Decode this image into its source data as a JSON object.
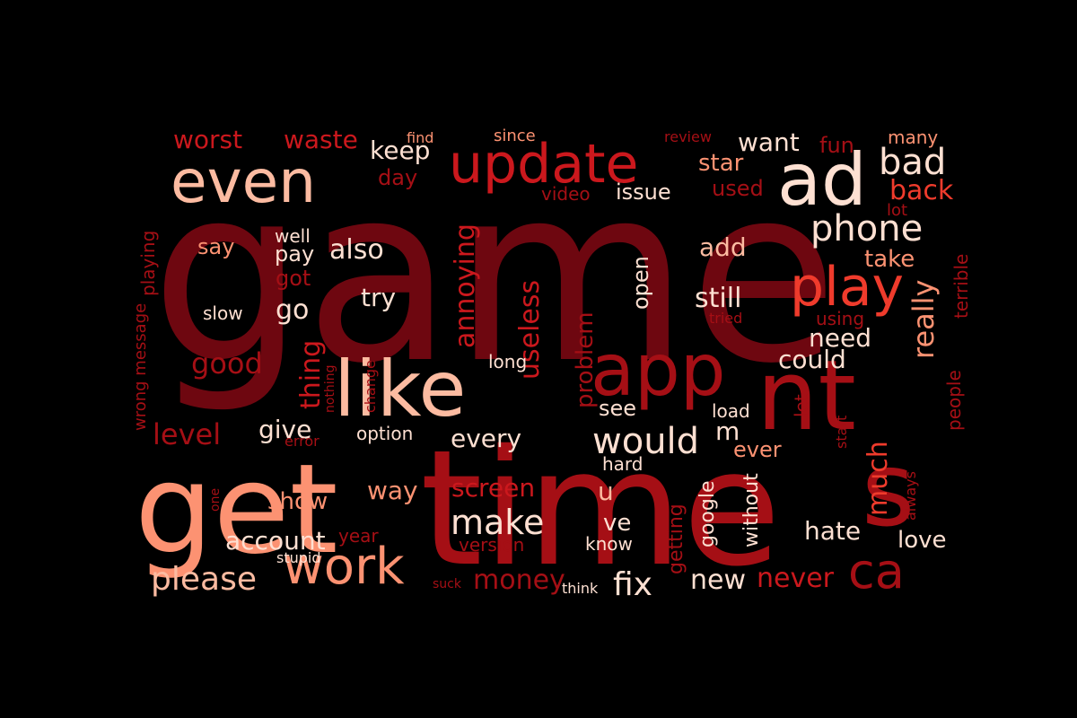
{
  "background": "#000000",
  "palette": {
    "maroon": "#6e0710",
    "dark_red": "#a50f15",
    "red": "#cb181d",
    "bright_red": "#ef3b2c",
    "salmon": "#fb6a4a",
    "light_salmon": "#fc9272",
    "peach": "#fcbba1",
    "pale": "#fee0d2"
  },
  "words": [
    {
      "text": "game",
      "color": "maroon"
    },
    {
      "text": "time",
      "color": "dark_red"
    },
    {
      "text": "get",
      "color": "light_salmon"
    },
    {
      "text": "nt",
      "color": "dark_red"
    },
    {
      "text": "like",
      "color": "peach"
    },
    {
      "text": "app",
      "color": "dark_red"
    },
    {
      "text": "ad",
      "color": "pale"
    },
    {
      "text": "even",
      "color": "peach"
    },
    {
      "text": "update",
      "color": "red"
    },
    {
      "text": "play",
      "color": "bright_red"
    },
    {
      "text": "s",
      "color": "dark_red"
    },
    {
      "text": "work",
      "color": "light_salmon"
    },
    {
      "text": "ca",
      "color": "dark_red"
    },
    {
      "text": "would",
      "color": "pale"
    },
    {
      "text": "make",
      "color": "pale"
    },
    {
      "text": "phone",
      "color": "pale"
    },
    {
      "text": "bad",
      "color": "pale"
    },
    {
      "text": "please",
      "color": "peach"
    },
    {
      "text": "worst",
      "color": "red"
    },
    {
      "text": "waste",
      "color": "red"
    },
    {
      "text": "keep",
      "color": "pale"
    },
    {
      "text": "want",
      "color": "pale"
    },
    {
      "text": "fun",
      "color": "dark_red"
    },
    {
      "text": "many",
      "color": "light_salmon"
    },
    {
      "text": "star",
      "color": "light_salmon"
    },
    {
      "text": "back",
      "color": "bright_red"
    },
    {
      "text": "used",
      "color": "dark_red"
    },
    {
      "text": "issue",
      "color": "pale"
    },
    {
      "text": "video",
      "color": "dark_red"
    },
    {
      "text": "day",
      "color": "dark_red"
    },
    {
      "text": "find",
      "color": "light_salmon"
    },
    {
      "text": "since",
      "color": "light_salmon"
    },
    {
      "text": "review",
      "color": "dark_red"
    },
    {
      "text": "well",
      "color": "pale"
    },
    {
      "text": "pay",
      "color": "pale"
    },
    {
      "text": "also",
      "color": "pale"
    },
    {
      "text": "say",
      "color": "light_salmon"
    },
    {
      "text": "got",
      "color": "dark_red"
    },
    {
      "text": "go",
      "color": "pale"
    },
    {
      "text": "try",
      "color": "pale"
    },
    {
      "text": "slow",
      "color": "pale"
    },
    {
      "text": "good",
      "color": "dark_red"
    },
    {
      "text": "thing",
      "color": "red"
    },
    {
      "text": "level",
      "color": "dark_red"
    },
    {
      "text": "give",
      "color": "pale"
    },
    {
      "text": "error",
      "color": "dark_red"
    },
    {
      "text": "option",
      "color": "pale"
    },
    {
      "text": "show",
      "color": "light_salmon"
    },
    {
      "text": "way",
      "color": "light_salmon"
    },
    {
      "text": "account",
      "color": "pale"
    },
    {
      "text": "year",
      "color": "dark_red"
    },
    {
      "text": "stupid",
      "color": "pale"
    },
    {
      "text": "suck",
      "color": "dark_red"
    },
    {
      "text": "money",
      "color": "dark_red"
    },
    {
      "text": "think",
      "color": "pale"
    },
    {
      "text": "fix",
      "color": "pale"
    },
    {
      "text": "new",
      "color": "pale"
    },
    {
      "text": "never",
      "color": "red"
    },
    {
      "text": "love",
      "color": "pale"
    },
    {
      "text": "hate",
      "color": "pale"
    },
    {
      "text": "know",
      "color": "pale"
    },
    {
      "text": "version",
      "color": "dark_red"
    },
    {
      "text": "ve",
      "color": "pale"
    },
    {
      "text": "u",
      "color": "peach"
    },
    {
      "text": "screen",
      "color": "red"
    },
    {
      "text": "every",
      "color": "pale"
    },
    {
      "text": "see",
      "color": "pale"
    },
    {
      "text": "hard",
      "color": "pale"
    },
    {
      "text": "add",
      "color": "peach"
    },
    {
      "text": "take",
      "color": "light_salmon"
    },
    {
      "text": "still",
      "color": "pale"
    },
    {
      "text": "need",
      "color": "pale"
    },
    {
      "text": "could",
      "color": "pale"
    },
    {
      "text": "really",
      "color": "light_salmon"
    },
    {
      "text": "much",
      "color": "bright_red"
    },
    {
      "text": "ever",
      "color": "light_salmon"
    },
    {
      "text": "load",
      "color": "pale"
    },
    {
      "text": "let",
      "color": "dark_red"
    },
    {
      "text": "m",
      "color": "pale"
    },
    {
      "text": "tried",
      "color": "dark_red"
    },
    {
      "text": "using",
      "color": "dark_red"
    },
    {
      "text": "lot",
      "color": "dark_red"
    },
    {
      "text": "terrible",
      "color": "dark_red"
    },
    {
      "text": "people",
      "color": "dark_red"
    },
    {
      "text": "start",
      "color": "dark_red"
    },
    {
      "text": "always",
      "color": "dark_red"
    },
    {
      "text": "without",
      "color": "pale"
    },
    {
      "text": "google",
      "color": "pale"
    },
    {
      "text": "getting",
      "color": "dark_red"
    },
    {
      "text": "open",
      "color": "pale"
    },
    {
      "text": "problem",
      "color": "dark_red"
    },
    {
      "text": "useless",
      "color": "red"
    },
    {
      "text": "annoying",
      "color": "red"
    },
    {
      "text": "long",
      "color": "pale"
    },
    {
      "text": "change",
      "color": "dark_red"
    },
    {
      "text": "nothing",
      "color": "dark_red"
    },
    {
      "text": "one",
      "color": "dark_red"
    },
    {
      "text": "wrong message",
      "color": "dark_red"
    },
    {
      "text": "playing",
      "color": "dark_red"
    }
  ]
}
